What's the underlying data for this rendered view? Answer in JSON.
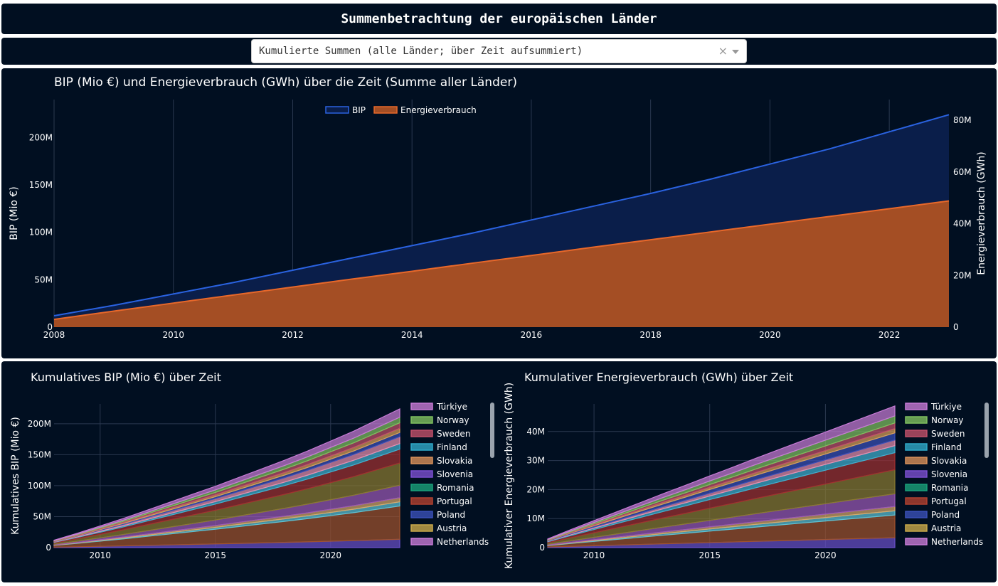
{
  "header": {
    "title": "Summenbetrachtung der europäischen Länder"
  },
  "dropdown": {
    "value": "Kumulierte Summen (alle Länder; über Zeit aufsummiert)",
    "clear_glyph": "×"
  },
  "chart_data": [
    {
      "type": "area",
      "title": "BIP (Mio €) und Energieverbrauch (GWh) über die Zeit (Summe aller Länder)",
      "x": [
        2008,
        2009,
        2010,
        2011,
        2012,
        2013,
        2014,
        2015,
        2016,
        2017,
        2018,
        2019,
        2020,
        2021,
        2022,
        2023
      ],
      "xticks": [
        2008,
        2010,
        2012,
        2014,
        2016,
        2018,
        2020,
        2022
      ],
      "ylabel": "BIP (Mio €)",
      "y2label": "Energieverbrauch (GWh)",
      "ylim": [
        0,
        240000000
      ],
      "y2lim": [
        0,
        88000000
      ],
      "yticks": [
        {
          "v": 0,
          "label": "0"
        },
        {
          "v": 50000000,
          "label": "50M"
        },
        {
          "v": 100000000,
          "label": "100M"
        },
        {
          "v": 150000000,
          "label": "150M"
        },
        {
          "v": 200000000,
          "label": "200M"
        }
      ],
      "y2ticks": [
        {
          "v": 0,
          "label": "0"
        },
        {
          "v": 20000000,
          "label": "20M"
        },
        {
          "v": 40000000,
          "label": "40M"
        },
        {
          "v": 60000000,
          "label": "60M"
        },
        {
          "v": 80000000,
          "label": "80M"
        }
      ],
      "legend_position": "top-center",
      "series": [
        {
          "name": "BIP",
          "axis": "y",
          "color": "#2a62e0",
          "fill": "#0a1e4a",
          "values": [
            12000000,
            23000000,
            35000000,
            47000000,
            60000000,
            73000000,
            86000000,
            99000000,
            113000000,
            127000000,
            141000000,
            156000000,
            172000000,
            188000000,
            206000000,
            224000000
          ]
        },
        {
          "name": "Energieverbrauch",
          "axis": "y2",
          "color": "#e8682a",
          "fill": "#a44e24",
          "values": [
            3000000,
            6200000,
            9300000,
            12400000,
            15500000,
            18600000,
            21600000,
            24700000,
            27700000,
            30800000,
            33800000,
            36800000,
            39800000,
            42800000,
            45800000,
            48800000
          ]
        }
      ]
    },
    {
      "type": "area",
      "stacked": true,
      "title": "Kumulatives BIP (Mio €) über Zeit",
      "x": [
        2008,
        2009,
        2010,
        2011,
        2012,
        2013,
        2014,
        2015,
        2016,
        2017,
        2018,
        2019,
        2020,
        2021,
        2022,
        2023
      ],
      "xticks": [
        2010,
        2015,
        2020
      ],
      "ylabel": "Kumulatives BIP (Mio €)",
      "ylim": [
        0,
        232000000
      ],
      "yticks": [
        {
          "v": 0,
          "label": "0"
        },
        {
          "v": 50000000,
          "label": "50M"
        },
        {
          "v": 100000000,
          "label": "100M"
        },
        {
          "v": 150000000,
          "label": "150M"
        },
        {
          "v": 200000000,
          "label": "200M"
        }
      ],
      "total": [
        12000000,
        23000000,
        35000000,
        47000000,
        60000000,
        73000000,
        86000000,
        99000000,
        113000000,
        127000000,
        141000000,
        156000000,
        172000000,
        188000000,
        206000000,
        224000000
      ],
      "layers": [
        {
          "color": "#6a4fc8",
          "share": 0.06
        },
        {
          "color": "#a0522d",
          "share": 0.24
        },
        {
          "color": "#5dc2d4",
          "share": 0.03
        },
        {
          "color": "#d6a86a",
          "share": 0.03
        },
        {
          "color": "#9b59b6",
          "share": 0.09
        },
        {
          "color": "#8a7a30",
          "share": 0.16
        },
        {
          "color": "#a03030",
          "share": 0.1
        },
        {
          "color": "#40b0d0",
          "share": 0.04
        },
        {
          "color": "#e68fb0",
          "share": 0.05
        },
        {
          "color": "#3a50b8",
          "share": 0.03
        },
        {
          "color": "#d9a05a",
          "share": 0.03
        },
        {
          "color": "#c0506a",
          "share": 0.04
        },
        {
          "color": "#7fbf5f",
          "share": 0.04
        },
        {
          "color": "#c77bd6",
          "share": 0.06
        }
      ],
      "legend": [
        {
          "name": "Türkiye",
          "color": "#c77bd6"
        },
        {
          "name": "Norway",
          "color": "#7fbf5f"
        },
        {
          "name": "Sweden",
          "color": "#c0506a"
        },
        {
          "name": "Finland",
          "color": "#2fa8c8"
        },
        {
          "name": "Slovakia",
          "color": "#d9905a"
        },
        {
          "name": "Slovenia",
          "color": "#7b4fd0"
        },
        {
          "name": "Romania",
          "color": "#1aa07a"
        },
        {
          "name": "Portugal",
          "color": "#b04030"
        },
        {
          "name": "Poland",
          "color": "#3a50b8"
        },
        {
          "name": "Austria",
          "color": "#c8a84a"
        },
        {
          "name": "Netherlands",
          "color": "#c77bd6"
        }
      ]
    },
    {
      "type": "area",
      "stacked": true,
      "title": "Kumulativer Energieverbrauch (GWh) über Zeit",
      "x": [
        2008,
        2009,
        2010,
        2011,
        2012,
        2013,
        2014,
        2015,
        2016,
        2017,
        2018,
        2019,
        2020,
        2021,
        2022,
        2023
      ],
      "xticks": [
        2010,
        2015,
        2020
      ],
      "ylabel": "Kumulativer Energieverbrauch (GWh)",
      "ylim": [
        0,
        49500000
      ],
      "yticks": [
        {
          "v": 0,
          "label": "0"
        },
        {
          "v": 10000000,
          "label": "10M"
        },
        {
          "v": 20000000,
          "label": "20M"
        },
        {
          "v": 30000000,
          "label": "30M"
        },
        {
          "v": 40000000,
          "label": "40M"
        }
      ],
      "total": [
        3000000,
        6200000,
        9300000,
        12400000,
        15500000,
        18600000,
        21600000,
        24700000,
        27700000,
        30800000,
        33800000,
        36800000,
        39800000,
        42800000,
        45800000,
        48800000
      ],
      "layers": [
        {
          "color": "#6a4fc8",
          "share": 0.07
        },
        {
          "color": "#a0522d",
          "share": 0.16
        },
        {
          "color": "#5dc2d4",
          "share": 0.03
        },
        {
          "color": "#d6a86a",
          "share": 0.03
        },
        {
          "color": "#9b59b6",
          "share": 0.09
        },
        {
          "color": "#8a7a30",
          "share": 0.17
        },
        {
          "color": "#a03030",
          "share": 0.12
        },
        {
          "color": "#40b0d0",
          "share": 0.05
        },
        {
          "color": "#e68fb0",
          "share": 0.04
        },
        {
          "color": "#3a50b8",
          "share": 0.05
        },
        {
          "color": "#d9a05a",
          "share": 0.03
        },
        {
          "color": "#c0506a",
          "share": 0.04
        },
        {
          "color": "#7fbf5f",
          "share": 0.05
        },
        {
          "color": "#c77bd6",
          "share": 0.07
        }
      ],
      "legend": [
        {
          "name": "Türkiye",
          "color": "#c77bd6"
        },
        {
          "name": "Norway",
          "color": "#7fbf5f"
        },
        {
          "name": "Sweden",
          "color": "#c0506a"
        },
        {
          "name": "Finland",
          "color": "#2fa8c8"
        },
        {
          "name": "Slovakia",
          "color": "#d9905a"
        },
        {
          "name": "Slovenia",
          "color": "#7b4fd0"
        },
        {
          "name": "Romania",
          "color": "#1aa07a"
        },
        {
          "name": "Portugal",
          "color": "#b04030"
        },
        {
          "name": "Poland",
          "color": "#3a50b8"
        },
        {
          "name": "Austria",
          "color": "#c8a84a"
        },
        {
          "name": "Netherlands",
          "color": "#c77bd6"
        }
      ]
    }
  ]
}
